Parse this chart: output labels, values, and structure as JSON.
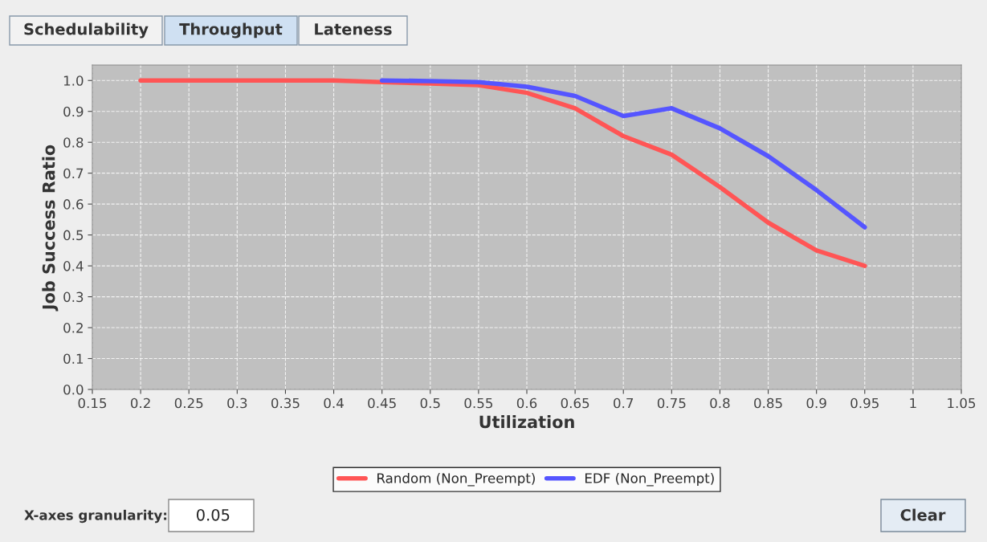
{
  "chart_data": {
    "type": "line",
    "xlabel": "Utilization",
    "ylabel": "Job Success Ratio",
    "x": [
      0.2,
      0.25,
      0.3,
      0.35,
      0.4,
      0.45,
      0.5,
      0.55,
      0.6,
      0.65,
      0.7,
      0.75,
      0.8,
      0.85,
      0.9,
      0.95
    ],
    "series": [
      {
        "name": "Random (Non_Preempt)",
        "color": "#ff5555",
        "values": [
          1.0,
          1.0,
          1.0,
          1.0,
          1.0,
          0.995,
          0.99,
          0.985,
          0.96,
          0.91,
          0.82,
          0.76,
          0.655,
          0.54,
          0.45,
          0.4
        ]
      },
      {
        "name": "EDF (Non_Preempt)",
        "color": "#5555ff",
        "values": [
          null,
          null,
          null,
          null,
          null,
          1.0,
          0.998,
          0.995,
          0.98,
          0.95,
          0.885,
          0.91,
          0.845,
          0.755,
          0.645,
          0.525
        ]
      }
    ],
    "xlim": [
      0.15,
      1.05
    ],
    "xticks": [
      0.15,
      0.2,
      0.25,
      0.3,
      0.35,
      0.4,
      0.45,
      0.5,
      0.55,
      0.6,
      0.65,
      0.7,
      0.75,
      0.8,
      0.85,
      0.9,
      0.95,
      1,
      1.05
    ],
    "ylim": [
      0,
      1.05
    ],
    "yticks": [
      {
        "value": 0,
        "label": "0.0"
      },
      0.1,
      0.2,
      0.3,
      0.4,
      0.5,
      0.6,
      0.7,
      0.8,
      0.9,
      {
        "value": 1,
        "label": "1.0"
      }
    ],
    "grid": true,
    "legend": "bottom",
    "marker": "none",
    "line_style": "solid",
    "annotations": [
      "Schedulability",
      "Throughput",
      "Lateness",
      "X-axes granularity:",
      "0.05",
      "Clear"
    ]
  }
}
